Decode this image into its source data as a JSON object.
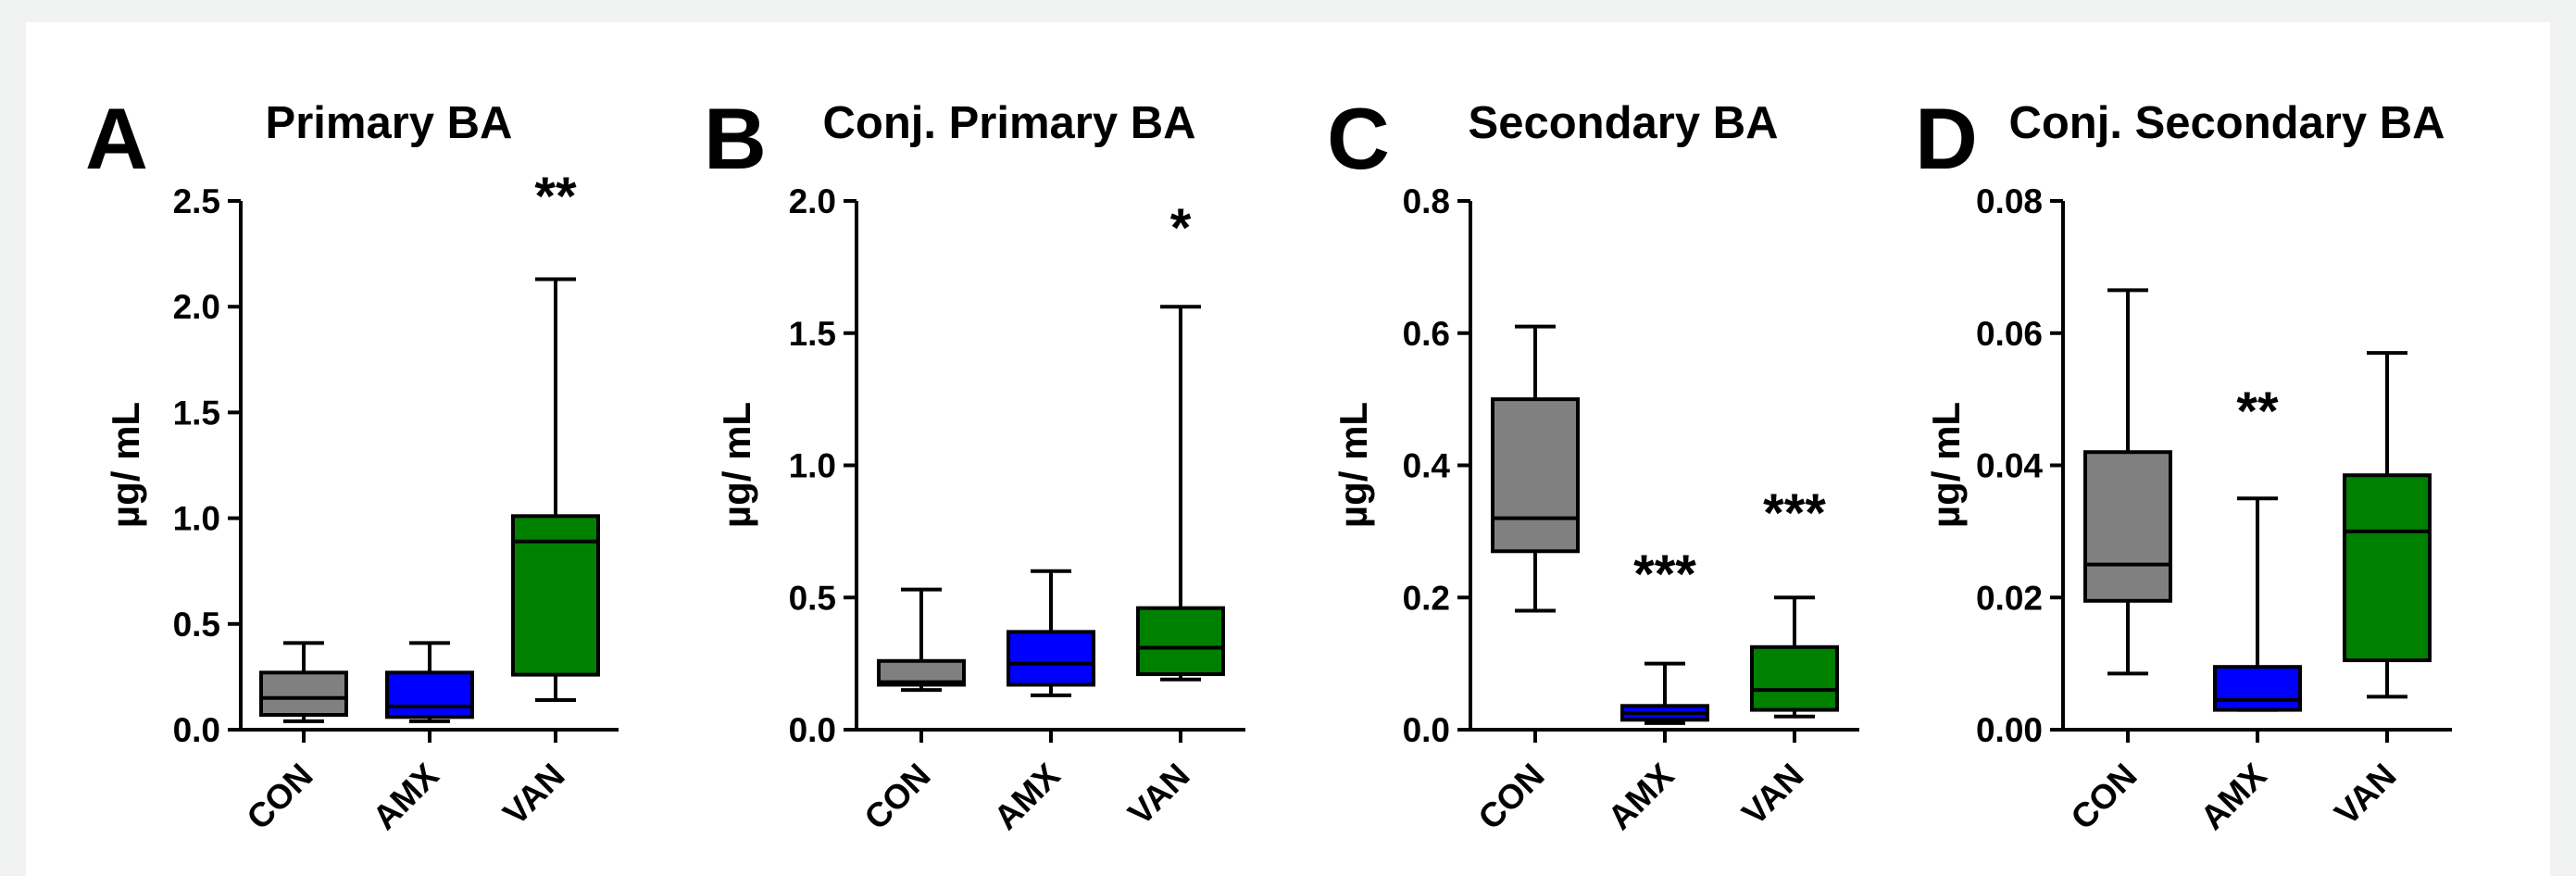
{
  "colors": {
    "CON": "#808080",
    "AMX": "#0000ff",
    "VAN": "#008000"
  },
  "chart_data": [
    {
      "type": "box",
      "letter": "A",
      "title": "Primary BA",
      "ylabel": "µg/ mL",
      "ylim": [
        0,
        2.5
      ],
      "yticks": [
        "0.0",
        "0.5",
        "1.0",
        "1.5",
        "2.0",
        "2.5"
      ],
      "categories": [
        "CON",
        "AMX",
        "VAN"
      ],
      "boxes": [
        {
          "group": "CON",
          "min": 0.04,
          "q1": 0.07,
          "median": 0.15,
          "q3": 0.27,
          "max": 0.41
        },
        {
          "group": "AMX",
          "min": 0.04,
          "q1": 0.06,
          "median": 0.11,
          "q3": 0.27,
          "max": 0.41
        },
        {
          "group": "VAN",
          "min": 0.14,
          "q1": 0.26,
          "median": 0.89,
          "q3": 1.01,
          "max": 2.13
        }
      ],
      "significance": [
        {
          "group": "VAN",
          "label": "**"
        }
      ]
    },
    {
      "type": "box",
      "letter": "B",
      "title": "Conj. Primary BA",
      "ylabel": "µg/ mL",
      "ylim": [
        0,
        2.0
      ],
      "yticks": [
        "0.0",
        "0.5",
        "1.0",
        "1.5",
        "2.0"
      ],
      "categories": [
        "CON",
        "AMX",
        "VAN"
      ],
      "boxes": [
        {
          "group": "CON",
          "min": 0.15,
          "q1": 0.17,
          "median": 0.18,
          "q3": 0.26,
          "max": 0.53
        },
        {
          "group": "AMX",
          "min": 0.13,
          "q1": 0.17,
          "median": 0.25,
          "q3": 0.37,
          "max": 0.6
        },
        {
          "group": "VAN",
          "min": 0.19,
          "q1": 0.21,
          "median": 0.31,
          "q3": 0.46,
          "max": 1.6
        }
      ],
      "significance": [
        {
          "group": "VAN",
          "label": "*"
        }
      ]
    },
    {
      "type": "box",
      "letter": "C",
      "title": "Secondary BA",
      "ylabel": "µg/ mL",
      "ylim": [
        0,
        0.8
      ],
      "yticks": [
        "0.0",
        "0.2",
        "0.4",
        "0.6",
        "0.8"
      ],
      "categories": [
        "CON",
        "AMX",
        "VAN"
      ],
      "boxes": [
        {
          "group": "CON",
          "min": 0.18,
          "q1": 0.27,
          "median": 0.32,
          "q3": 0.5,
          "max": 0.61
        },
        {
          "group": "AMX",
          "min": 0.01,
          "q1": 0.015,
          "median": 0.025,
          "q3": 0.036,
          "max": 0.1
        },
        {
          "group": "VAN",
          "min": 0.02,
          "q1": 0.03,
          "median": 0.06,
          "q3": 0.125,
          "max": 0.2
        }
      ],
      "significance": [
        {
          "group": "AMX",
          "label": "***"
        },
        {
          "group": "VAN",
          "label": "***"
        }
      ]
    },
    {
      "type": "box",
      "letter": "D",
      "title": "Conj. Secondary BA",
      "ylabel": "µg/ mL",
      "ylim": [
        0,
        0.08
      ],
      "yticks": [
        "0.00",
        "0.02",
        "0.04",
        "0.06",
        "0.08"
      ],
      "categories": [
        "CON",
        "AMX",
        "VAN"
      ],
      "boxes": [
        {
          "group": "CON",
          "min": 0.0085,
          "q1": 0.0195,
          "median": 0.025,
          "q3": 0.042,
          "max": 0.0665
        },
        {
          "group": "AMX",
          "min": 0.003,
          "q1": 0.003,
          "median": 0.0045,
          "q3": 0.0095,
          "max": 0.035
        },
        {
          "group": "VAN",
          "min": 0.005,
          "q1": 0.0105,
          "median": 0.03,
          "q3": 0.0385,
          "max": 0.057
        }
      ],
      "significance": [
        {
          "group": "AMX",
          "label": "**"
        }
      ]
    }
  ]
}
